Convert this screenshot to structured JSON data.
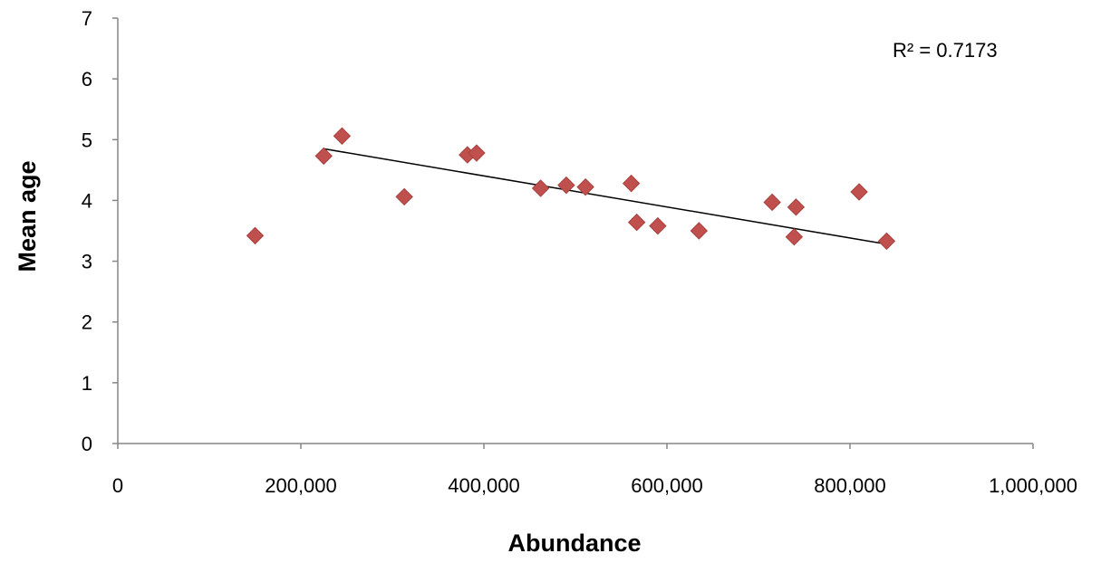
{
  "chart_data": {
    "type": "scatter",
    "xlabel": "Abundance",
    "ylabel": "Mean age",
    "xlim": [
      0,
      1000000
    ],
    "ylim": [
      0,
      7
    ],
    "x_ticks": [
      0,
      200000,
      400000,
      600000,
      800000,
      1000000
    ],
    "x_tick_labels": [
      "0",
      "200,000",
      "400,000",
      "600,000",
      "800,000",
      "1,000,000"
    ],
    "y_ticks": [
      0,
      1,
      2,
      3,
      4,
      5,
      6,
      7
    ],
    "y_tick_labels": [
      "0",
      "1",
      "2",
      "3",
      "4",
      "5",
      "6",
      "7"
    ],
    "grid": false,
    "marker": "diamond",
    "marker_color": "#C0504D",
    "trendline_color": "#000000",
    "series": [
      {
        "points": [
          {
            "x": 150000,
            "y": 3.42
          },
          {
            "x": 225000,
            "y": 4.73
          },
          {
            "x": 245000,
            "y": 5.06
          },
          {
            "x": 313000,
            "y": 4.06
          },
          {
            "x": 382000,
            "y": 4.75
          },
          {
            "x": 392000,
            "y": 4.78
          },
          {
            "x": 462000,
            "y": 4.2
          },
          {
            "x": 490000,
            "y": 4.25
          },
          {
            "x": 511000,
            "y": 4.22
          },
          {
            "x": 561000,
            "y": 4.28
          },
          {
            "x": 567000,
            "y": 3.64
          },
          {
            "x": 590000,
            "y": 3.58
          },
          {
            "x": 635000,
            "y": 3.5
          },
          {
            "x": 715000,
            "y": 3.97
          },
          {
            "x": 739000,
            "y": 3.4
          },
          {
            "x": 741000,
            "y": 3.89
          },
          {
            "x": 810000,
            "y": 4.14
          },
          {
            "x": 840000,
            "y": 3.33
          }
        ]
      }
    ],
    "trendline": {
      "x": [
        225000,
        840000
      ],
      "y": [
        4.85,
        3.28
      ]
    },
    "annotations": [
      {
        "text": "R² = 0.7173",
        "position": "top-right"
      }
    ]
  }
}
